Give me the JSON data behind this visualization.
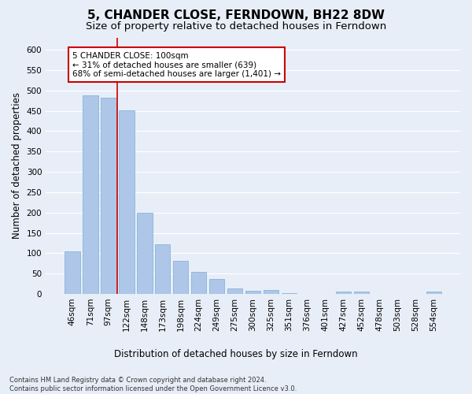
{
  "title": "5, CHANDER CLOSE, FERNDOWN, BH22 8DW",
  "subtitle": "Size of property relative to detached houses in Ferndown",
  "xlabel": "Distribution of detached houses by size in Ferndown",
  "ylabel": "Number of detached properties",
  "categories": [
    "46sqm",
    "71sqm",
    "97sqm",
    "122sqm",
    "148sqm",
    "173sqm",
    "198sqm",
    "224sqm",
    "249sqm",
    "275sqm",
    "300sqm",
    "325sqm",
    "351sqm",
    "376sqm",
    "401sqm",
    "427sqm",
    "452sqm",
    "478sqm",
    "503sqm",
    "528sqm",
    "554sqm"
  ],
  "values": [
    105,
    488,
    481,
    451,
    200,
    122,
    82,
    54,
    37,
    14,
    8,
    9,
    1,
    0,
    0,
    6,
    6,
    0,
    0,
    0,
    5
  ],
  "bar_color": "#aec6e8",
  "bar_edgecolor": "#7aadd4",
  "vline_x_index": 2,
  "vline_color": "#cc0000",
  "annotation_text": "5 CHANDER CLOSE: 100sqm\n← 31% of detached houses are smaller (639)\n68% of semi-detached houses are larger (1,401) →",
  "annotation_box_color": "#ffffff",
  "annotation_box_edgecolor": "#cc0000",
  "ylim": [
    0,
    630
  ],
  "yticks": [
    0,
    50,
    100,
    150,
    200,
    250,
    300,
    350,
    400,
    450,
    500,
    550,
    600
  ],
  "footnote": "Contains HM Land Registry data © Crown copyright and database right 2024.\nContains public sector information licensed under the Open Government Licence v3.0.",
  "bg_color": "#e8eef8",
  "plot_bg_color": "#e8eef8",
  "grid_color": "#ffffff",
  "title_fontsize": 11,
  "subtitle_fontsize": 9.5,
  "tick_fontsize": 7.5,
  "ylabel_fontsize": 8.5,
  "xlabel_fontsize": 8.5,
  "footnote_fontsize": 6,
  "annotation_fontsize": 7.5
}
